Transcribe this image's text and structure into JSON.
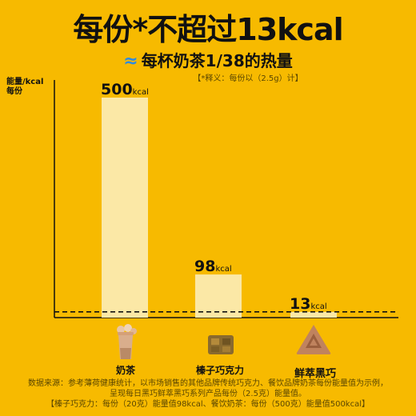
{
  "header": {
    "title": "每份*不超过13kcal",
    "subtitle_symbol": "≈",
    "subtitle": "每杯奶茶1/38的热量",
    "note": "【*释义：每份以（2.5g）计】"
  },
  "colors": {
    "background": "#F7BA00",
    "bar": "#FBE8A6",
    "bar_highlight": "#2E8BE0",
    "axis": "#111111"
  },
  "chart_data": {
    "type": "bar",
    "ylabel": "能量/kcal\n每份",
    "categories": [
      "奶茶",
      "榛子巧克力",
      "鲜萃黑巧"
    ],
    "values": [
      500,
      98,
      13
    ],
    "value_labels": [
      "500",
      "98",
      "13"
    ],
    "unit": "kcal",
    "ylim": [
      0,
      540
    ],
    "grid": false,
    "reference_line": 13
  },
  "icons": [
    "milk-tea-icon",
    "chocolate-icon",
    "triangle-chocolate-icon"
  ],
  "footer": {
    "line1": "数据来源：参考薄荷健康统计，以市场销售的其他品牌传统巧克力、餐饮品牌奶茶每份能量值为示例，",
    "line2": "呈现每日黑巧鲜萃黑巧系列产品每份（2.5克）能量值。",
    "line3": "【榛子巧克力：每份（20克）能量值98kcal、餐饮奶茶：每份（500克）能量值500kcal】"
  }
}
